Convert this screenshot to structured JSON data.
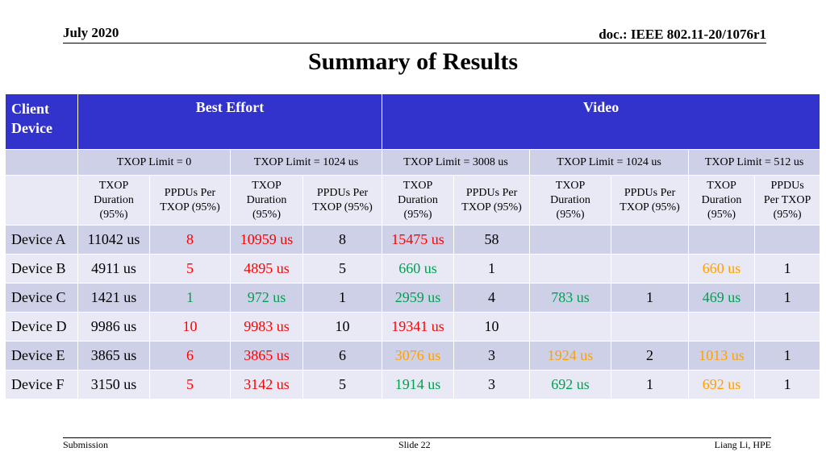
{
  "header": {
    "date": "July 2020",
    "doc": "doc.: IEEE 802.11-20/1076r1"
  },
  "title": "Summary of Results",
  "table": {
    "client_device_label": "Client Device",
    "groups": [
      "Best Effort",
      "Video"
    ],
    "txop_limits": [
      "TXOP Limit = 0",
      "TXOP Limit  = 1024 us",
      "TXOP Limit = 3008 us",
      "TXOP Limit = 1024 us",
      "TXOP Limit = 512 us"
    ],
    "col_headers": [
      [
        "TXOP",
        "Duration",
        "(95%)"
      ],
      [
        "PPDUs Per",
        "TXOP (95%)"
      ],
      [
        "TXOP",
        "Duration",
        "(95%)"
      ],
      [
        "PPDUs Per",
        "TXOP (95%)"
      ],
      [
        "TXOP",
        "Duration",
        "(95%)"
      ],
      [
        "PPDUs Per",
        "TXOP (95%)"
      ],
      [
        "TXOP",
        "Duration",
        "(95%)"
      ],
      [
        "PPDUs Per",
        "TXOP (95%)"
      ],
      [
        "TXOP",
        "Duration",
        "(95%)"
      ],
      [
        "PPDUs",
        "Per TXOP",
        "(95%)"
      ]
    ],
    "colors": {
      "red": "#ff0000",
      "green": "#00a050",
      "orange": "#ffa000",
      "black": "#000000",
      "header_blue": "#3232cc"
    },
    "rows": [
      {
        "device": "Device A",
        "cells": [
          {
            "v": "11042 us",
            "c": "black"
          },
          {
            "v": "8",
            "c": "red"
          },
          {
            "v": "10959 us",
            "c": "red"
          },
          {
            "v": "8",
            "c": "black"
          },
          {
            "v": "15475 us",
            "c": "red"
          },
          {
            "v": "58",
            "c": "black"
          },
          {
            "v": "",
            "c": "black"
          },
          {
            "v": "",
            "c": "black"
          },
          {
            "v": "",
            "c": "black"
          },
          {
            "v": "",
            "c": "black"
          }
        ]
      },
      {
        "device": "Device B",
        "cells": [
          {
            "v": "4911 us",
            "c": "black"
          },
          {
            "v": "5",
            "c": "red"
          },
          {
            "v": "4895 us",
            "c": "red"
          },
          {
            "v": "5",
            "c": "black"
          },
          {
            "v": "660 us",
            "c": "green"
          },
          {
            "v": "1",
            "c": "black"
          },
          {
            "v": "",
            "c": "black"
          },
          {
            "v": "",
            "c": "black"
          },
          {
            "v": "660 us",
            "c": "orange"
          },
          {
            "v": "1",
            "c": "black"
          }
        ]
      },
      {
        "device": "Device C",
        "cells": [
          {
            "v": "1421 us",
            "c": "black"
          },
          {
            "v": "1",
            "c": "green"
          },
          {
            "v": "972 us",
            "c": "green"
          },
          {
            "v": "1",
            "c": "black"
          },
          {
            "v": "2959 us",
            "c": "green"
          },
          {
            "v": "4",
            "c": "black"
          },
          {
            "v": "783 us",
            "c": "green"
          },
          {
            "v": "1",
            "c": "black"
          },
          {
            "v": "469 us",
            "c": "green"
          },
          {
            "v": "1",
            "c": "black"
          }
        ]
      },
      {
        "device": "Device D",
        "cells": [
          {
            "v": "9986 us",
            "c": "black"
          },
          {
            "v": "10",
            "c": "red"
          },
          {
            "v": "9983 us",
            "c": "red"
          },
          {
            "v": "10",
            "c": "black"
          },
          {
            "v": "19341 us",
            "c": "red"
          },
          {
            "v": "10",
            "c": "black"
          },
          {
            "v": "",
            "c": "black"
          },
          {
            "v": "",
            "c": "black"
          },
          {
            "v": "",
            "c": "black"
          },
          {
            "v": "",
            "c": "black"
          }
        ]
      },
      {
        "device": "Device E",
        "cells": [
          {
            "v": "3865 us",
            "c": "black"
          },
          {
            "v": "6",
            "c": "red"
          },
          {
            "v": "3865 us",
            "c": "red"
          },
          {
            "v": "6",
            "c": "black"
          },
          {
            "v": "3076 us",
            "c": "orange"
          },
          {
            "v": "3",
            "c": "black"
          },
          {
            "v": "1924 us",
            "c": "orange"
          },
          {
            "v": "2",
            "c": "black"
          },
          {
            "v": "1013 us",
            "c": "orange"
          },
          {
            "v": "1",
            "c": "black"
          }
        ]
      },
      {
        "device": "Device F",
        "cells": [
          {
            "v": "3150 us",
            "c": "black"
          },
          {
            "v": "5",
            "c": "red"
          },
          {
            "v": "3142 us",
            "c": "red"
          },
          {
            "v": "5",
            "c": "black"
          },
          {
            "v": "1914 us",
            "c": "green"
          },
          {
            "v": "3",
            "c": "black"
          },
          {
            "v": "692 us",
            "c": "green"
          },
          {
            "v": "1",
            "c": "black"
          },
          {
            "v": "692 us",
            "c": "orange"
          },
          {
            "v": "1",
            "c": "black"
          }
        ]
      }
    ]
  },
  "footer": {
    "left": "Submission",
    "center": "Slide 22",
    "right": "Liang Li, HPE"
  }
}
